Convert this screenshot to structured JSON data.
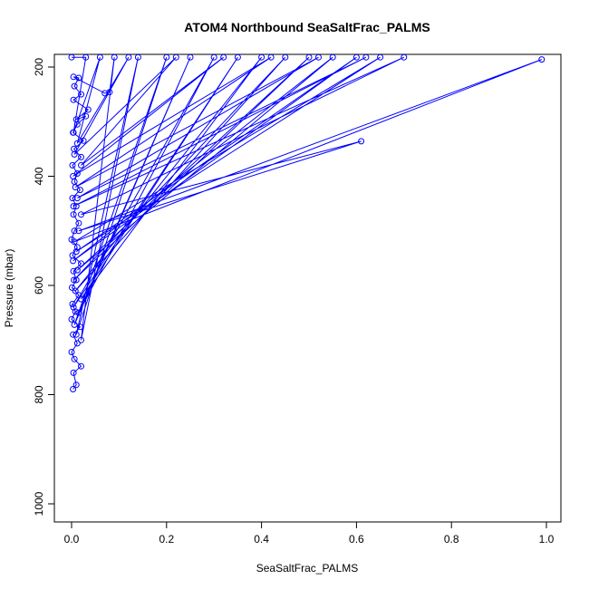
{
  "chart_data": {
    "type": "line",
    "title": "ATOM4 Northbound SeaSaltFrac_PALMS",
    "xlabel": "SeaSaltFrac_PALMS",
    "ylabel": "Pressure (mbar)",
    "xlim": [
      0,
      1
    ],
    "ylim": [
      1000,
      200
    ],
    "y_reversed": true,
    "grid": false,
    "xticks": [
      0.0,
      0.2,
      0.4,
      0.6,
      0.8,
      1.0
    ],
    "xtick_labels": [
      "0.0",
      "0.2",
      "0.4",
      "0.6",
      "0.8",
      "1.0"
    ],
    "yticks": [
      200,
      400,
      600,
      800,
      1000
    ],
    "ytick_labels": [
      "200",
      "400",
      "600",
      "800",
      "1000"
    ],
    "colors": {
      "series": "#0000ff"
    },
    "series": [
      {
        "values": [
          [
            0.003,
            790
          ],
          [
            0.01,
            782
          ],
          [
            0.004,
            760
          ],
          [
            0.02,
            748
          ],
          [
            0.006,
            735
          ],
          [
            0.0,
            722
          ],
          [
            0.012,
            706
          ],
          [
            0.003,
            690
          ],
          [
            0.018,
            676
          ],
          [
            0.0,
            662
          ],
          [
            0.008,
            648
          ],
          [
            0.002,
            634
          ],
          [
            0.015,
            618
          ],
          [
            0.001,
            604
          ],
          [
            0.01,
            590
          ],
          [
            0.004,
            574
          ],
          [
            0.02,
            560
          ],
          [
            0.002,
            545
          ],
          [
            0.012,
            530
          ],
          [
            0.0,
            516
          ],
          [
            0.006,
            500
          ],
          [
            0.015,
            486
          ],
          [
            0.004,
            470
          ],
          [
            0.01,
            455
          ],
          [
            0.002,
            440
          ],
          [
            0.018,
            425
          ],
          [
            0.006,
            410
          ],
          [
            0.012,
            395
          ],
          [
            0.002,
            380
          ],
          [
            0.02,
            365
          ],
          [
            0.005,
            350
          ],
          [
            0.025,
            335
          ],
          [
            0.003,
            320
          ],
          [
            0.012,
            305
          ],
          [
            0.03,
            290
          ],
          [
            0.01,
            296
          ],
          [
            0.035,
            278
          ],
          [
            0.004,
            260
          ],
          [
            0.02,
            250
          ],
          [
            0.006,
            235
          ],
          [
            0.015,
            220
          ],
          [
            0.004,
            218
          ],
          [
            0.07,
            248
          ],
          [
            0.08,
            246
          ],
          [
            0.09,
            182
          ],
          [
            0.02,
            700
          ],
          [
            0.14,
            182
          ],
          [
            0.01,
            690
          ],
          [
            0.2,
            182
          ],
          [
            0.006,
            672
          ],
          [
            0.25,
            182
          ],
          [
            0.015,
            650
          ],
          [
            0.3,
            182
          ],
          [
            0.004,
            640
          ],
          [
            0.35,
            182
          ],
          [
            0.02,
            625
          ],
          [
            0.4,
            182
          ],
          [
            0.008,
            610
          ],
          [
            0.45,
            182
          ],
          [
            0.005,
            590
          ],
          [
            0.5,
            182
          ],
          [
            0.012,
            572
          ],
          [
            0.55,
            182
          ],
          [
            0.003,
            555
          ],
          [
            0.6,
            182
          ],
          [
            0.01,
            538
          ],
          [
            0.65,
            182
          ],
          [
            0.006,
            520
          ],
          [
            0.99,
            186
          ],
          [
            0.015,
            500
          ],
          [
            0.61,
            336
          ],
          [
            0.02,
            470
          ],
          [
            0.7,
            182
          ],
          [
            0.004,
            455
          ],
          [
            0.62,
            182
          ],
          [
            0.012,
            440
          ],
          [
            0.52,
            182
          ],
          [
            0.008,
            420
          ],
          [
            0.42,
            182
          ],
          [
            0.003,
            400
          ],
          [
            0.32,
            182
          ],
          [
            0.02,
            380
          ],
          [
            0.22,
            182
          ],
          [
            0.006,
            360
          ],
          [
            0.12,
            182
          ],
          [
            0.012,
            340
          ],
          [
            0.06,
            182
          ],
          [
            0.004,
            320
          ],
          [
            0.03,
            182
          ],
          [
            0.0,
            182
          ]
        ]
      }
    ]
  }
}
